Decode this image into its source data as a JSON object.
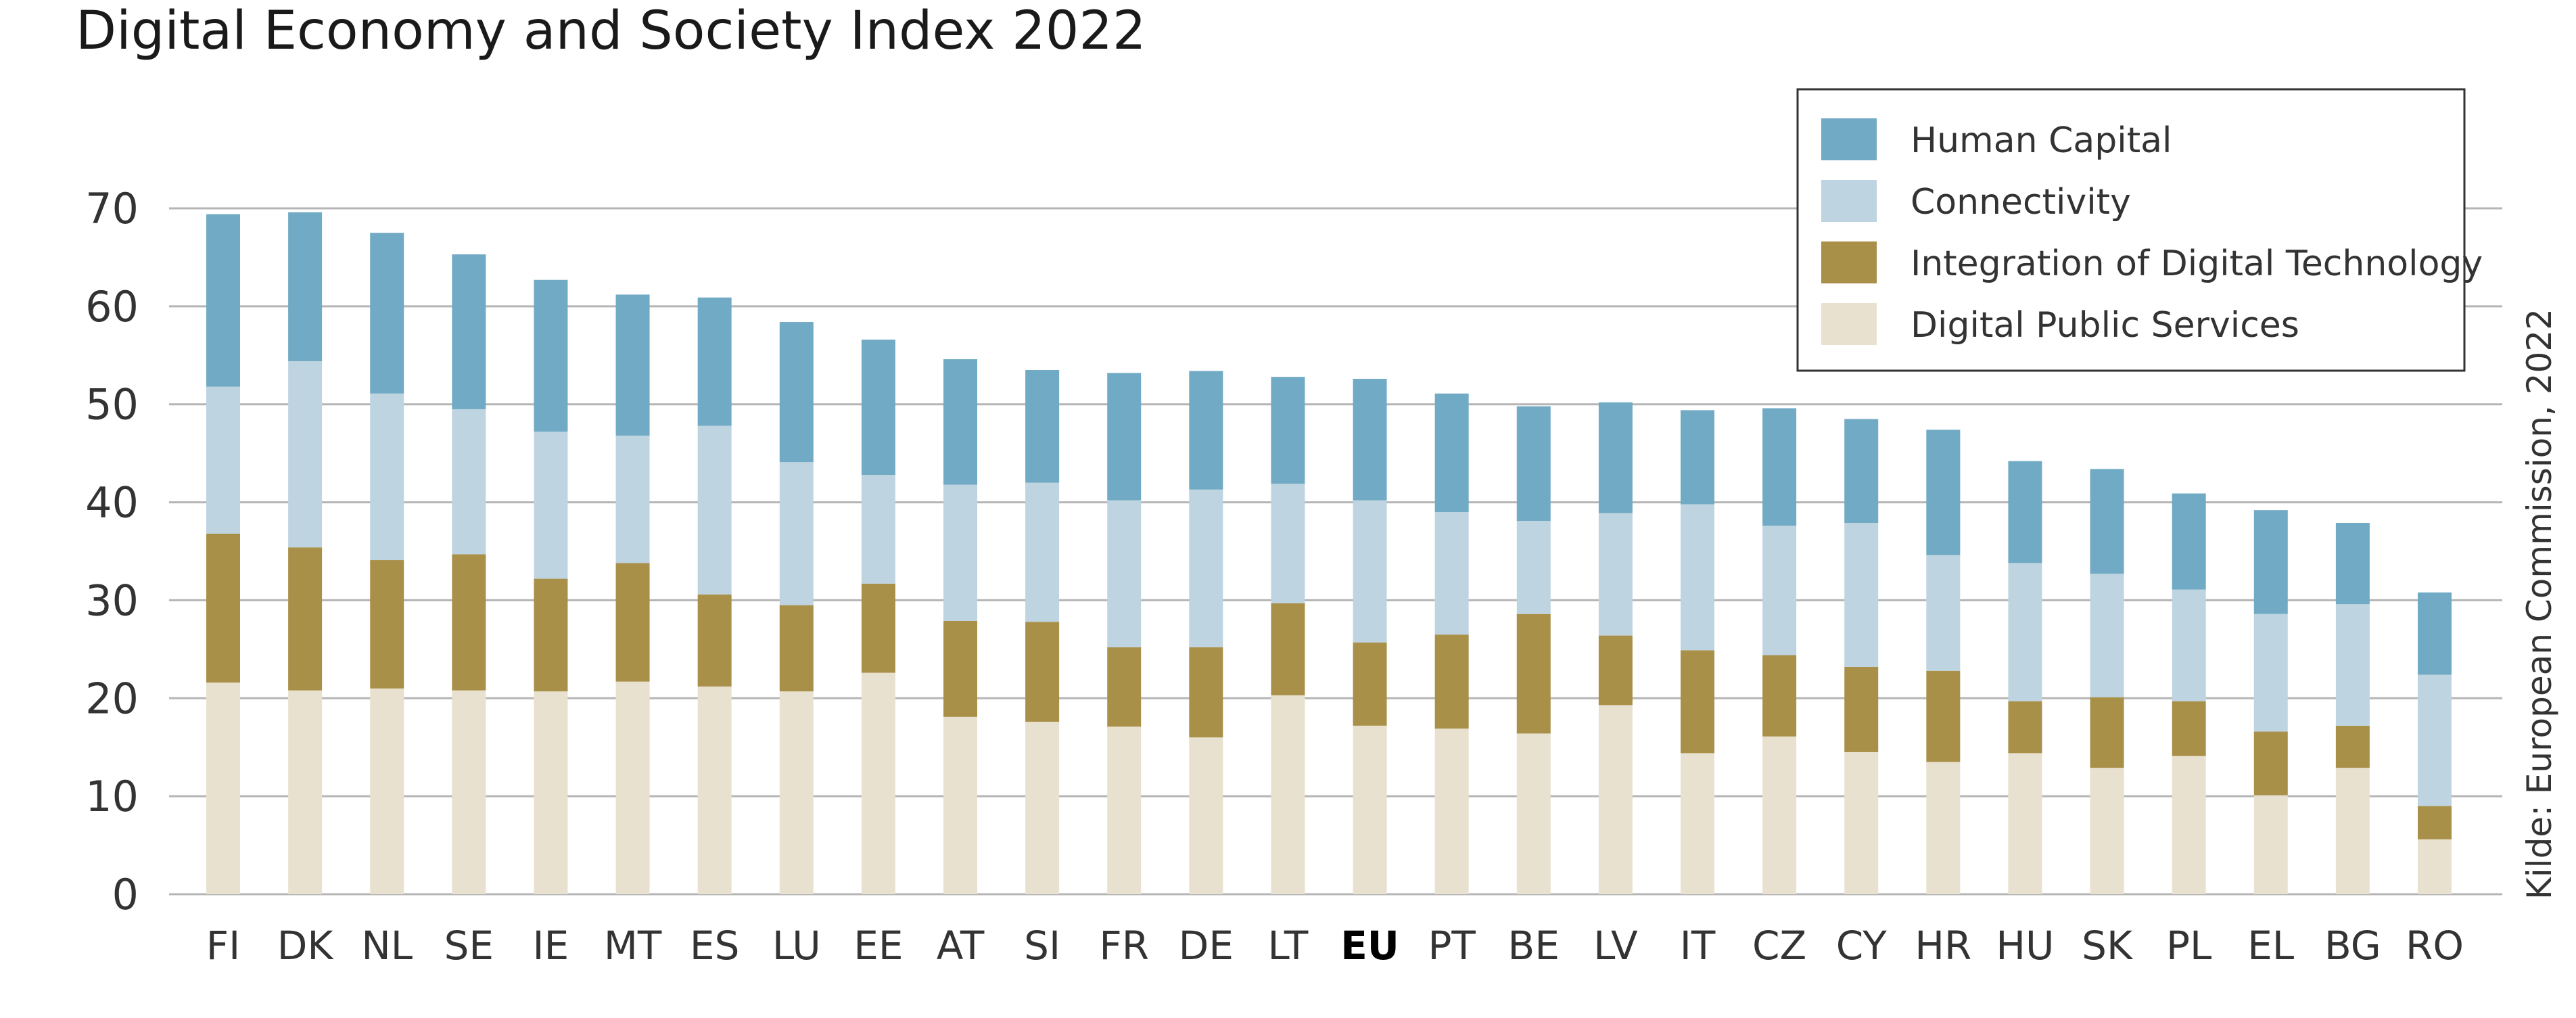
{
  "chart_data": {
    "type": "bar",
    "stacked": true,
    "title": "Digital Economy and Society Index 2022",
    "source": "Kilde: European Commission, 2022",
    "xlabel": "",
    "ylabel": "",
    "ylim": [
      0,
      70
    ],
    "yticks": [
      0,
      10,
      20,
      30,
      40,
      50,
      60,
      70
    ],
    "grid": true,
    "legend_position": "top-right",
    "highlight_category": "EU",
    "categories": [
      "FI",
      "DK",
      "NL",
      "SE",
      "IE",
      "MT",
      "ES",
      "LU",
      "EE",
      "AT",
      "SI",
      "FR",
      "DE",
      "LT",
      "EU",
      "PT",
      "BE",
      "LV",
      "IT",
      "CZ",
      "CY",
      "HR",
      "HU",
      "SK",
      "PL",
      "EL",
      "BG",
      "RO"
    ],
    "series": [
      {
        "name": "Digital Public Services",
        "color": "#e9e1cf",
        "values": [
          21.6,
          20.8,
          21.0,
          20.8,
          20.7,
          21.7,
          21.2,
          20.7,
          22.6,
          18.1,
          17.6,
          17.1,
          16.0,
          20.3,
          17.2,
          16.9,
          16.4,
          19.3,
          14.4,
          16.1,
          14.5,
          13.5,
          14.4,
          12.9,
          14.1,
          10.1,
          12.9,
          5.6
        ]
      },
      {
        "name": "Integration of Digital Technology",
        "color": "#a99049",
        "values": [
          15.2,
          14.6,
          13.1,
          13.9,
          11.5,
          12.1,
          9.4,
          8.8,
          9.1,
          9.8,
          10.2,
          8.1,
          9.2,
          9.4,
          8.5,
          9.6,
          12.2,
          7.1,
          10.5,
          8.3,
          8.7,
          9.3,
          5.3,
          7.2,
          5.6,
          6.5,
          4.3,
          3.4
        ]
      },
      {
        "name": "Connectivity",
        "color": "#bfd4e1",
        "values": [
          15.0,
          19.0,
          17.0,
          14.8,
          15.0,
          13.0,
          17.2,
          14.6,
          11.1,
          13.9,
          14.2,
          15.0,
          16.1,
          12.2,
          14.5,
          12.5,
          9.5,
          12.5,
          14.9,
          13.2,
          14.7,
          11.8,
          14.1,
          12.6,
          11.4,
          12.0,
          12.4,
          13.4
        ]
      },
      {
        "name": "Human Capital",
        "color": "#71aac4",
        "values": [
          17.6,
          15.2,
          16.4,
          15.8,
          15.5,
          14.4,
          13.1,
          14.3,
          13.8,
          12.8,
          11.5,
          13.0,
          12.1,
          10.9,
          12.4,
          12.1,
          11.7,
          11.3,
          9.6,
          12.0,
          10.6,
          12.8,
          10.4,
          10.7,
          9.8,
          10.6,
          8.3,
          8.4
        ]
      }
    ],
    "legend_order": [
      "Human Capital",
      "Connectivity",
      "Integration of Digital Technology",
      "Digital Public Services"
    ]
  }
}
